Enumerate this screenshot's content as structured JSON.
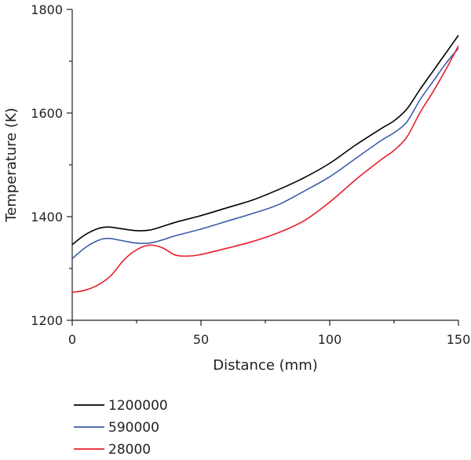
{
  "chart_data": {
    "type": "line",
    "xlabel": "Distance (mm)",
    "ylabel": "Temperature (K)",
    "xlim": [
      0,
      150
    ],
    "ylim": [
      1200,
      1800
    ],
    "xticks": [
      0,
      50,
      100,
      150
    ],
    "yticks": [
      1200,
      1400,
      1600,
      1800
    ],
    "grid": false,
    "legend_position": "bottom-left",
    "series": [
      {
        "name": "1200000",
        "color": "#000000",
        "x": [
          0,
          5,
          10,
          14,
          20,
          25,
          30,
          35,
          40,
          50,
          60,
          70,
          80,
          90,
          100,
          110,
          120,
          125,
          130,
          135,
          140,
          145,
          150
        ],
        "y": [
          1346,
          1365,
          1377,
          1380,
          1376,
          1373,
          1374,
          1381,
          1389,
          1402,
          1417,
          1432,
          1452,
          1475,
          1503,
          1538,
          1570,
          1585,
          1608,
          1645,
          1680,
          1715,
          1750
        ]
      },
      {
        "name": "590000",
        "color": "#3c5ca8",
        "x": [
          0,
          5,
          10,
          14,
          20,
          25,
          30,
          35,
          40,
          50,
          60,
          70,
          80,
          90,
          100,
          110,
          120,
          125,
          130,
          135,
          140,
          145,
          150
        ],
        "y": [
          1319,
          1340,
          1354,
          1358,
          1353,
          1349,
          1349,
          1355,
          1363,
          1376,
          1391,
          1406,
          1423,
          1449,
          1477,
          1512,
          1547,
          1562,
          1583,
          1625,
          1660,
          1695,
          1725
        ]
      },
      {
        "name": "28000",
        "color": "#e5202d",
        "x": [
          0,
          5,
          10,
          15,
          20,
          25,
          30,
          35,
          40,
          45,
          50,
          60,
          70,
          80,
          90,
          100,
          110,
          120,
          125,
          130,
          135,
          140,
          145,
          150
        ],
        "y": [
          1254,
          1258,
          1268,
          1286,
          1316,
          1336,
          1345,
          1340,
          1326,
          1324,
          1327,
          1339,
          1352,
          1369,
          1392,
          1428,
          1471,
          1510,
          1528,
          1554,
          1600,
          1640,
          1683,
          1730
        ]
      }
    ]
  }
}
